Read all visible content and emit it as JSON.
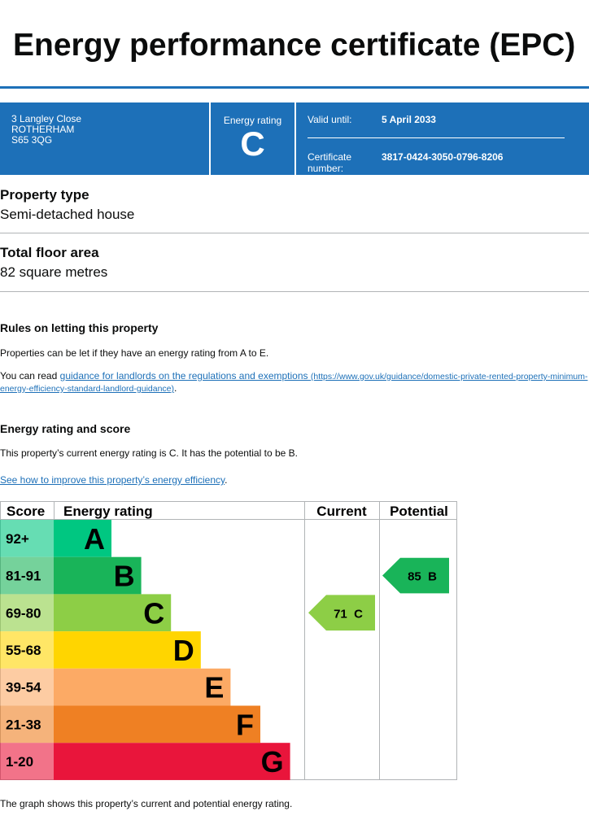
{
  "header": {
    "title": "Energy performance certificate (EPC)"
  },
  "summary": {
    "address": [
      "3 Langley Close",
      "ROTHERHAM",
      "S65 3QG"
    ],
    "energy_rating_label": "Energy rating",
    "energy_rating": "C",
    "valid_until_label": "Valid until:",
    "valid_until": "5 April 2033",
    "certificate_label": "Certificate number:",
    "certificate_number": "3817-0424-3050-0796-8206"
  },
  "property_type": {
    "heading": "Property type",
    "value": "Semi-detached house"
  },
  "floor_area": {
    "heading": "Total floor area",
    "value": "82 square metres"
  },
  "rules": {
    "heading": "Rules on letting this property",
    "paragraph": "Properties can be let if they have an energy rating from A to E.",
    "read_prefix": "You can read",
    "link_text": "guidance for landlords on the regulations and exemptions",
    "link_url": "(https://www.gov.uk/guidance/domestic-private-rented-property-minimum-energy-efficiency-standard-landlord-guidance)",
    "read_suffix": "."
  },
  "rating_section": {
    "heading": "Energy rating and score",
    "text": "This property’s current energy rating is C. It has the potential to be B.",
    "link": "See how to improve this property’s energy efficiency",
    "link_suffix": "."
  },
  "rating_chart": {
    "columns": [
      "Score",
      "Energy rating",
      "Current",
      "Potential"
    ],
    "bands": [
      {
        "score": "92+",
        "letter": "A",
        "color": "#00c781"
      },
      {
        "score": "81-91",
        "letter": "B",
        "color": "#19b459"
      },
      {
        "score": "69-80",
        "letter": "C",
        "color": "#8dce46"
      },
      {
        "score": "55-68",
        "letter": "D",
        "color": "#ffd500"
      },
      {
        "score": "39-54",
        "letter": "E",
        "color": "#fcaa65"
      },
      {
        "score": "21-38",
        "letter": "F",
        "color": "#ef8023"
      },
      {
        "score": "1-20",
        "letter": "G",
        "color": "#e9153b"
      }
    ],
    "current": {
      "value": 71,
      "letter": "C"
    },
    "potential": {
      "value": 85,
      "letter": "B"
    }
  },
  "footer": {
    "text": "The graph shows this property’s current and potential energy rating."
  }
}
